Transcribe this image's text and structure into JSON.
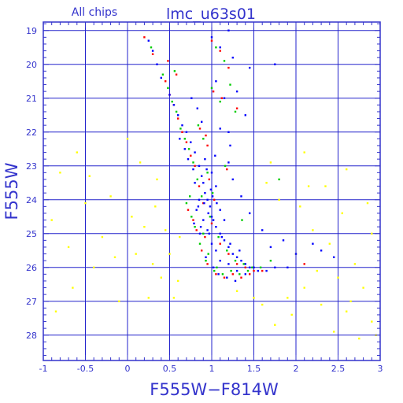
{
  "page": {
    "subtitle": "All chips",
    "title": "lmc_u63s01"
  },
  "chart_data": {
    "type": "scatter",
    "title": "lmc_u63s01",
    "subtitle": "All chips",
    "xlabel": "F555W−F814W",
    "ylabel": "F555W",
    "xlim": [
      -1,
      3
    ],
    "ylim": [
      18.75,
      28.75
    ],
    "y_inverted": true,
    "grid": true,
    "x_ticks": [
      {
        "value": -1,
        "label": "-1"
      },
      {
        "value": -0.5,
        "label": "-0.5"
      },
      {
        "value": 0,
        "label": "0"
      },
      {
        "value": 0.5,
        "label": "0.5"
      },
      {
        "value": 1,
        "label": "1"
      },
      {
        "value": 1.5,
        "label": "1.5"
      },
      {
        "value": 2,
        "label": "2"
      },
      {
        "value": 2.5,
        "label": "2.5"
      },
      {
        "value": 3,
        "label": "3"
      }
    ],
    "y_ticks": [
      {
        "value": 19,
        "label": "19"
      },
      {
        "value": 20,
        "label": "20"
      },
      {
        "value": 21,
        "label": "21"
      },
      {
        "value": 22,
        "label": "22"
      },
      {
        "value": 23,
        "label": "23"
      },
      {
        "value": 24,
        "label": "24"
      },
      {
        "value": 25,
        "label": "25"
      },
      {
        "value": 26,
        "label": "26"
      },
      {
        "value": 27,
        "label": "27"
      },
      {
        "value": 28,
        "label": "28"
      }
    ],
    "colors": {
      "axis": "#3333cc",
      "grid": "#2222cc",
      "series": [
        "#0000ff",
        "#ff0000",
        "#00cc00",
        "#ffff00"
      ]
    },
    "series": [
      {
        "color": "#0000ff",
        "points": [
          [
            0.95,
            24.0
          ],
          [
            0.9,
            23.5
          ],
          [
            1.0,
            24.5
          ],
          [
            0.85,
            23.0
          ],
          [
            1.05,
            24.8
          ],
          [
            1.1,
            25.0
          ],
          [
            0.8,
            22.6
          ],
          [
            0.92,
            23.8
          ],
          [
            1.15,
            25.2
          ],
          [
            1.2,
            25.4
          ],
          [
            0.98,
            24.2
          ],
          [
            0.88,
            23.3
          ],
          [
            1.25,
            25.6
          ],
          [
            1.3,
            25.7
          ],
          [
            0.75,
            22.3
          ],
          [
            0.7,
            22.0
          ],
          [
            1.35,
            25.8
          ],
          [
            1.4,
            25.9
          ],
          [
            0.65,
            21.8
          ],
          [
            1.45,
            26.0
          ],
          [
            1.5,
            26.0
          ],
          [
            1.55,
            26.1
          ],
          [
            0.6,
            21.5
          ],
          [
            1.0,
            25.3
          ],
          [
            0.9,
            24.6
          ],
          [
            0.95,
            24.9
          ],
          [
            1.05,
            25.5
          ],
          [
            1.1,
            25.8
          ],
          [
            0.85,
            24.0
          ],
          [
            0.8,
            23.5
          ],
          [
            1.2,
            25.9
          ],
          [
            1.3,
            26.1
          ],
          [
            1.4,
            26.2
          ],
          [
            0.55,
            21.2
          ],
          [
            0.5,
            20.9
          ],
          [
            1.65,
            26.1
          ],
          [
            1.75,
            26.0
          ],
          [
            1.0,
            23.2
          ],
          [
            1.05,
            23.6
          ],
          [
            0.92,
            22.8
          ],
          [
            1.1,
            24.3
          ],
          [
            1.15,
            24.6
          ],
          [
            0.97,
            25.0
          ],
          [
            0.82,
            24.3
          ],
          [
            0.87,
            24.8
          ],
          [
            1.02,
            26.0
          ],
          [
            0.93,
            25.7
          ],
          [
            1.08,
            26.2
          ],
          [
            1.18,
            26.3
          ],
          [
            1.28,
            26.4
          ],
          [
            1.0,
            19.2
          ],
          [
            1.1,
            19.5
          ],
          [
            1.2,
            19.0
          ],
          [
            1.25,
            19.8
          ],
          [
            1.05,
            20.5
          ],
          [
            1.15,
            21.0
          ],
          [
            0.4,
            20.4
          ],
          [
            0.35,
            20.0
          ],
          [
            0.3,
            19.6
          ],
          [
            0.25,
            19.3
          ],
          [
            1.9,
            26.0
          ],
          [
            2.0,
            25.6
          ],
          [
            1.85,
            25.2
          ],
          [
            1.6,
            24.9
          ],
          [
            1.7,
            25.4
          ],
          [
            1.45,
            24.4
          ],
          [
            1.35,
            23.9
          ],
          [
            1.25,
            23.4
          ],
          [
            1.2,
            22.9
          ],
          [
            1.22,
            22.4
          ],
          [
            1.1,
            21.9
          ],
          [
            0.78,
            23.1
          ],
          [
            0.72,
            22.8
          ],
          [
            0.68,
            22.5
          ],
          [
            0.62,
            22.2
          ],
          [
            1.4,
            21.5
          ],
          [
            1.3,
            20.8
          ],
          [
            1.45,
            20.1
          ],
          [
            1.75,
            20.0
          ],
          [
            2.3,
            25.5
          ],
          [
            2.45,
            25.7
          ],
          [
            2.2,
            25.3
          ],
          [
            1.2,
            22.0
          ],
          [
            0.76,
            21.0
          ],
          [
            0.83,
            21.3
          ],
          [
            0.88,
            21.7
          ],
          [
            1.02,
            24.6
          ],
          [
            0.96,
            24.4
          ],
          [
            1.06,
            24.1
          ],
          [
            0.99,
            23.7
          ],
          [
            0.91,
            24.1
          ],
          [
            1.01,
            23.9
          ],
          [
            1.12,
            25.1
          ],
          [
            1.22,
            25.3
          ],
          [
            1.33,
            25.5
          ],
          [
            0.86,
            25.0
          ],
          [
            0.79,
            24.7
          ],
          [
            0.84,
            24.2
          ],
          [
            0.94,
            23.1
          ],
          [
            1.04,
            22.7
          ]
        ]
      },
      {
        "color": "#ff0000",
        "points": [
          [
            0.9,
            24.1
          ],
          [
            1.0,
            24.7
          ],
          [
            0.85,
            23.6
          ],
          [
            1.1,
            25.3
          ],
          [
            0.8,
            23.0
          ],
          [
            1.2,
            25.6
          ],
          [
            0.75,
            22.7
          ],
          [
            1.3,
            25.9
          ],
          [
            0.7,
            22.3
          ],
          [
            1.4,
            26.0
          ],
          [
            0.65,
            22.0
          ],
          [
            0.6,
            21.6
          ],
          [
            1.5,
            26.1
          ],
          [
            0.55,
            21.2
          ],
          [
            0.5,
            20.9
          ],
          [
            1.0,
            19.3
          ],
          [
            1.1,
            19.6
          ],
          [
            1.2,
            20.1
          ],
          [
            0.45,
            20.5
          ],
          [
            0.3,
            19.7
          ],
          [
            0.2,
            19.2
          ],
          [
            0.95,
            25.9
          ],
          [
            1.05,
            26.2
          ],
          [
            1.15,
            26.3
          ],
          [
            0.88,
            25.5
          ],
          [
            0.82,
            24.9
          ],
          [
            0.92,
            25.1
          ],
          [
            1.25,
            26.2
          ],
          [
            1.35,
            26.3
          ],
          [
            1.45,
            26.2
          ],
          [
            1.6,
            26.1
          ],
          [
            0.72,
            24.3
          ],
          [
            0.78,
            24.6
          ],
          [
            0.97,
            23.4
          ],
          [
            1.03,
            24.0
          ],
          [
            1.12,
            21.0
          ],
          [
            1.02,
            20.8
          ],
          [
            1.3,
            21.3
          ],
          [
            0.58,
            20.3
          ],
          [
            0.48,
            19.9
          ],
          [
            0.95,
            22.4
          ],
          [
            1.18,
            23.1
          ],
          [
            2.1,
            25.9
          ],
          [
            0.86,
            21.9
          ],
          [
            0.93,
            22.1
          ]
        ]
      },
      {
        "color": "#00cc00",
        "points": [
          [
            0.88,
            23.9
          ],
          [
            0.98,
            24.5
          ],
          [
            0.83,
            23.4
          ],
          [
            1.08,
            25.1
          ],
          [
            0.78,
            22.9
          ],
          [
            1.18,
            25.5
          ],
          [
            0.73,
            22.5
          ],
          [
            1.28,
            25.8
          ],
          [
            0.68,
            22.2
          ],
          [
            1.38,
            25.9
          ],
          [
            0.63,
            21.9
          ],
          [
            0.58,
            21.4
          ],
          [
            1.48,
            26.0
          ],
          [
            0.53,
            21.1
          ],
          [
            0.48,
            20.7
          ],
          [
            1.05,
            19.5
          ],
          [
            1.15,
            19.9
          ],
          [
            1.22,
            20.6
          ],
          [
            0.42,
            20.3
          ],
          [
            0.28,
            19.5
          ],
          [
            0.93,
            25.8
          ],
          [
            1.03,
            26.1
          ],
          [
            1.13,
            26.2
          ],
          [
            0.86,
            25.3
          ],
          [
            0.8,
            24.8
          ],
          [
            0.9,
            25.0
          ],
          [
            1.23,
            26.1
          ],
          [
            1.33,
            26.2
          ],
          [
            1.43,
            26.1
          ],
          [
            1.58,
            26.0
          ],
          [
            0.7,
            24.1
          ],
          [
            0.76,
            24.5
          ],
          [
            0.95,
            23.2
          ],
          [
            1.01,
            23.8
          ],
          [
            1.1,
            21.1
          ],
          [
            1.0,
            20.7
          ],
          [
            1.28,
            21.4
          ],
          [
            0.56,
            20.2
          ],
          [
            1.7,
            25.8
          ],
          [
            0.9,
            22.2
          ],
          [
            1.16,
            23.0
          ],
          [
            1.8,
            23.4
          ],
          [
            0.84,
            21.8
          ],
          [
            1.36,
            24.6
          ],
          [
            0.96,
            25.6
          ],
          [
            1.06,
            26.0
          ],
          [
            0.74,
            23.9
          ]
        ]
      },
      {
        "color": "#ffff00",
        "points": [
          [
            -0.8,
            23.2
          ],
          [
            -0.9,
            24.6
          ],
          [
            -0.7,
            25.4
          ],
          [
            -0.5,
            24.1
          ],
          [
            -0.3,
            25.1
          ],
          [
            -0.6,
            22.6
          ],
          [
            -0.2,
            23.9
          ],
          [
            -0.4,
            26.0
          ],
          [
            0.05,
            24.5
          ],
          [
            0.1,
            25.6
          ],
          [
            0.2,
            24.8
          ],
          [
            0.3,
            25.9
          ],
          [
            0.35,
            23.4
          ],
          [
            0.15,
            22.9
          ],
          [
            0.4,
            26.3
          ],
          [
            -0.1,
            27.0
          ],
          [
            2.1,
            26.6
          ],
          [
            2.3,
            27.1
          ],
          [
            2.5,
            26.3
          ],
          [
            2.6,
            27.3
          ],
          [
            2.8,
            26.6
          ],
          [
            2.9,
            27.6
          ],
          [
            2.7,
            25.9
          ],
          [
            2.4,
            25.3
          ],
          [
            2.2,
            24.9
          ],
          [
            2.0,
            25.6
          ],
          [
            1.9,
            26.9
          ],
          [
            2.95,
            28.0
          ],
          [
            2.35,
            23.6
          ],
          [
            2.55,
            24.4
          ],
          [
            1.8,
            24.0
          ],
          [
            1.7,
            22.9
          ],
          [
            2.1,
            22.6
          ],
          [
            2.6,
            23.1
          ],
          [
            2.85,
            24.1
          ],
          [
            2.9,
            25.0
          ],
          [
            1.6,
            27.1
          ],
          [
            1.5,
            26.9
          ],
          [
            1.3,
            26.7
          ],
          [
            0.6,
            26.4
          ],
          [
            0.5,
            25.6
          ],
          [
            0.45,
            24.9
          ],
          [
            -0.85,
            27.3
          ],
          [
            -0.65,
            26.6
          ],
          [
            0.25,
            26.9
          ],
          [
            2.75,
            28.1
          ],
          [
            2.45,
            27.9
          ],
          [
            1.95,
            27.4
          ],
          [
            1.75,
            27.7
          ],
          [
            2.15,
            23.6
          ],
          [
            -0.45,
            23.3
          ],
          [
            0.0,
            22.2
          ],
          [
            0.55,
            26.9
          ],
          [
            2.65,
            27.0
          ],
          [
            2.25,
            26.1
          ],
          [
            0.62,
            25.1
          ],
          [
            -0.15,
            25.7
          ],
          [
            2.05,
            24.2
          ],
          [
            0.33,
            24.2
          ],
          [
            1.65,
            23.5
          ]
        ]
      }
    ]
  }
}
